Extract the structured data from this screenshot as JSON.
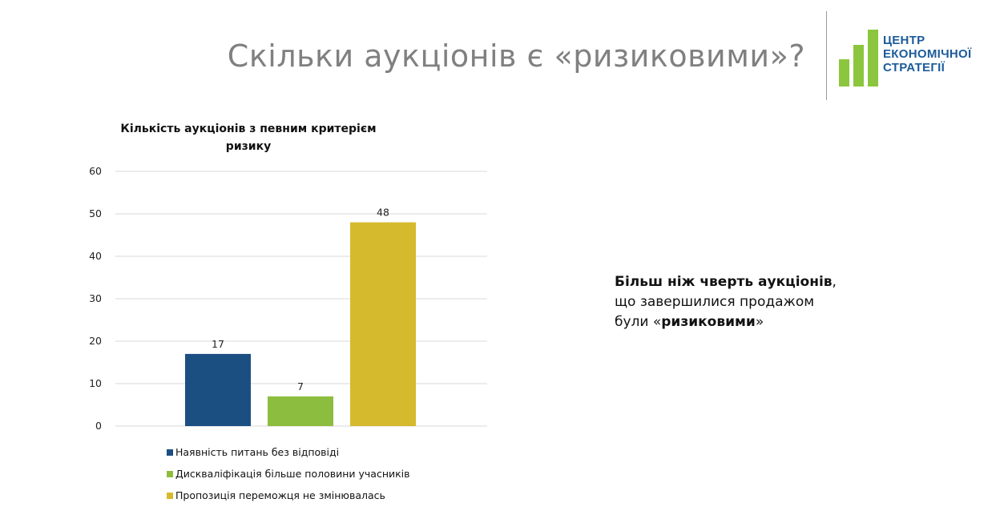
{
  "slide": {
    "title": "Скільки аукціонів є «ризиковими»?"
  },
  "logo": {
    "line1": "ЦЕНТР",
    "line2": "ЕКОНОМІЧНОЇ",
    "line3": "СТРАТЕГІЇ",
    "bar_color": "#8cc63e",
    "text_color": "#1c5b9a"
  },
  "side_note": {
    "bold_start": "Більш ніж чверть аукціонів",
    "comma": ",",
    "line2": "що завершилися продажом",
    "line3_prefix": "були «",
    "line3_bold": "ризиковими",
    "line3_suffix": "»"
  },
  "chart_data": {
    "type": "bar",
    "title": "Кількість аукціонів з певним критерієм ризику",
    "categories": [
      "Наявність питань без відповіді",
      "Дискваліфікація більше половини учасників",
      "Пропозиція переможця не змінювалась"
    ],
    "values": [
      17,
      7,
      48
    ],
    "colors": [
      "#1b4f82",
      "#8dbd3f",
      "#d6ba2d"
    ],
    "ylim": [
      0,
      60
    ],
    "yticks": [
      0,
      10,
      20,
      30,
      40,
      50,
      60
    ],
    "grid": true,
    "legend_position": "bottom",
    "xlabel": "",
    "ylabel": ""
  }
}
